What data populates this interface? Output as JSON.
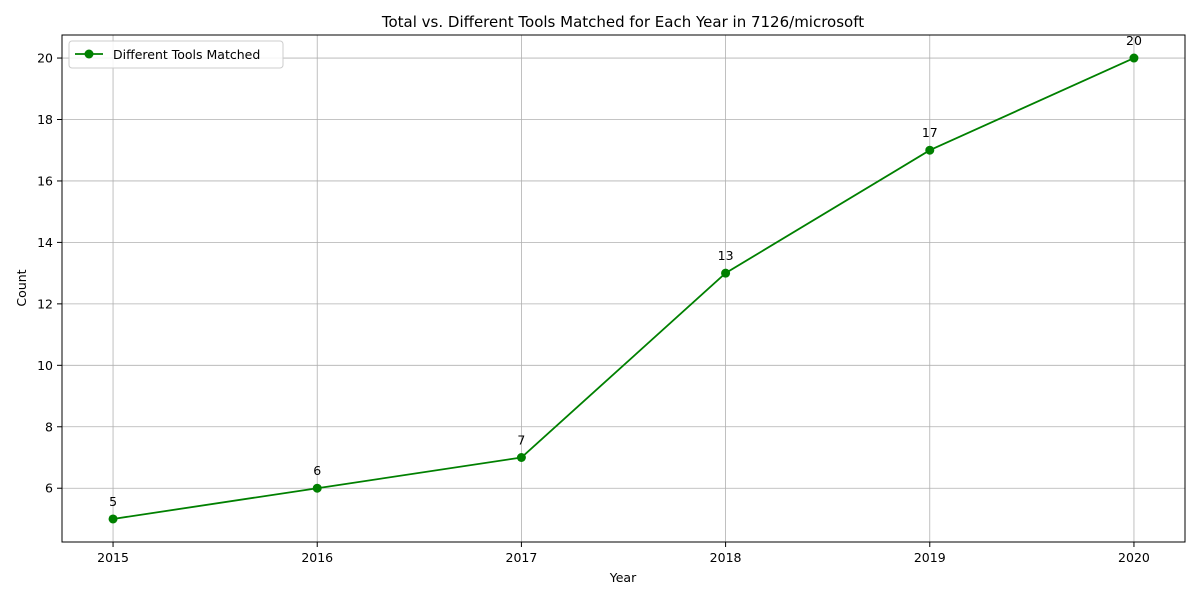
{
  "chart_data": {
    "type": "line",
    "title": "Total vs. Different Tools Matched for Each Year in 7126/microsoft",
    "xlabel": "Year",
    "ylabel": "Count",
    "x": [
      2015,
      2016,
      2017,
      2018,
      2019,
      2020
    ],
    "series": [
      {
        "name": "Different Tools Matched",
        "values": [
          5,
          6,
          7,
          13,
          17,
          20
        ],
        "color": "#008000",
        "marker": "circle"
      }
    ],
    "xlim": [
      2014.75,
      2020.25
    ],
    "ylim": [
      4.25,
      20.75
    ],
    "yticks": [
      6,
      8,
      10,
      12,
      14,
      16,
      18,
      20
    ],
    "grid": true,
    "legend_position": "top-left"
  }
}
